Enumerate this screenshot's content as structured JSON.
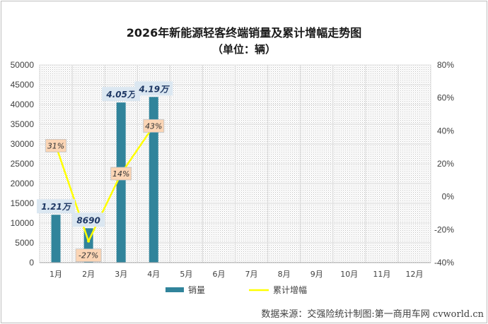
{
  "chart_data": {
    "type": "bar",
    "title": "2026年新能源轻客终端销量及累计增幅走势图",
    "subtitle": "（单位：辆）",
    "categories": [
      "1月",
      "2月",
      "3月",
      "4月",
      "5月",
      "6月",
      "7月",
      "8月",
      "9月",
      "10月",
      "11月",
      "12月"
    ],
    "series": [
      {
        "name": "销量",
        "type": "bar",
        "axis": "left",
        "color": "#31849b",
        "values": [
          12100,
          8690,
          40500,
          41900,
          null,
          null,
          null,
          null,
          null,
          null,
          null,
          null
        ],
        "labels": [
          "1.21万",
          "8690",
          "4.05万",
          "4.19万"
        ]
      },
      {
        "name": "累计增幅",
        "type": "line",
        "axis": "right",
        "color": "#ffff00",
        "values": [
          31,
          -27,
          14,
          43,
          null,
          null,
          null,
          null,
          null,
          null,
          null,
          null
        ],
        "labels": [
          "31%",
          "-27%",
          "14%",
          "43%"
        ]
      }
    ],
    "ylim": [
      0,
      50000
    ],
    "y_ticks": [
      "0",
      "5000",
      "10000",
      "15000",
      "20000",
      "25000",
      "30000",
      "35000",
      "40000",
      "45000",
      "50000"
    ],
    "y2lim": [
      -40,
      80
    ],
    "y2_ticks": [
      "-40%",
      "-20%",
      "0%",
      "20%",
      "40%",
      "60%",
      "80%"
    ],
    "grid": true,
    "legend": "bottom",
    "source": "数据来源：交强险统计制图:第一商用车网 cvworld.cn"
  }
}
